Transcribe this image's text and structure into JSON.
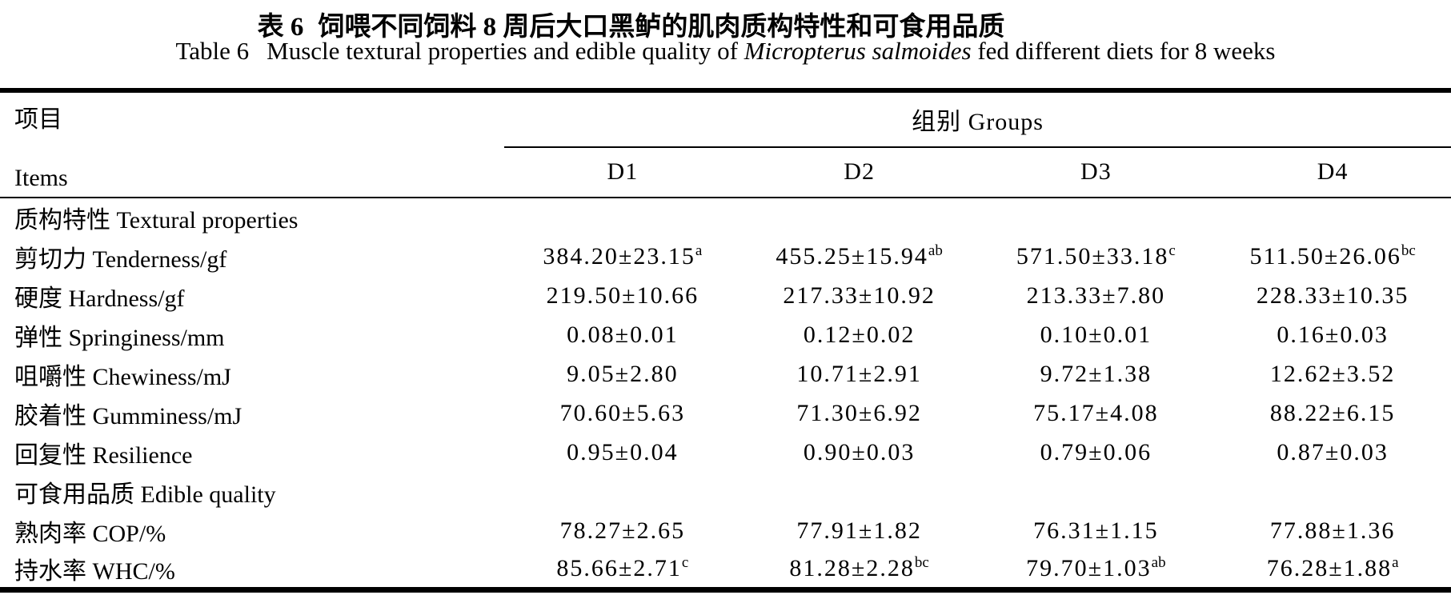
{
  "title": {
    "zh_prefix": "表 6",
    "zh_main": "饲喂不同饲料 8 周后大口黑鲈的肌肉质构特性和可食用品质",
    "en_prefix": "Table 6",
    "en_before_italic": "Muscle textural properties and edible quality of",
    "en_italic": "Micropterus salmoides",
    "en_after_italic": "fed different diets for 8 weeks"
  },
  "table": {
    "header": {
      "items_zh": "项目",
      "items_en": "Items",
      "groups_label": "组别 Groups",
      "columns": [
        "D1",
        "D2",
        "D3",
        "D4"
      ]
    },
    "rows": [
      {
        "type": "section",
        "label": "质构特性 Textural properties"
      },
      {
        "type": "data",
        "label": "剪切力 Tenderness/gf",
        "values": [
          {
            "text": "384.20±23.15",
            "sup": "a"
          },
          {
            "text": "455.25±15.94",
            "sup": "ab"
          },
          {
            "text": "571.50±33.18",
            "sup": "c"
          },
          {
            "text": "511.50±26.06",
            "sup": "bc"
          }
        ]
      },
      {
        "type": "data",
        "label": "硬度 Hardness/gf",
        "values": [
          {
            "text": "219.50±10.66",
            "sup": ""
          },
          {
            "text": "217.33±10.92",
            "sup": ""
          },
          {
            "text": "213.33±7.80",
            "sup": ""
          },
          {
            "text": "228.33±10.35",
            "sup": ""
          }
        ]
      },
      {
        "type": "data",
        "label": "弹性 Springiness/mm",
        "values": [
          {
            "text": "0.08±0.01",
            "sup": ""
          },
          {
            "text": "0.12±0.02",
            "sup": ""
          },
          {
            "text": "0.10±0.01",
            "sup": ""
          },
          {
            "text": "0.16±0.03",
            "sup": ""
          }
        ]
      },
      {
        "type": "data",
        "label": "咀嚼性 Chewiness/mJ",
        "values": [
          {
            "text": "9.05±2.80",
            "sup": ""
          },
          {
            "text": "10.71±2.91",
            "sup": ""
          },
          {
            "text": "9.72±1.38",
            "sup": ""
          },
          {
            "text": "12.62±3.52",
            "sup": ""
          }
        ]
      },
      {
        "type": "data",
        "label": "胶着性 Gumminess/mJ",
        "values": [
          {
            "text": "70.60±5.63",
            "sup": ""
          },
          {
            "text": "71.30±6.92",
            "sup": ""
          },
          {
            "text": "75.17±4.08",
            "sup": ""
          },
          {
            "text": "88.22±6.15",
            "sup": ""
          }
        ]
      },
      {
        "type": "data",
        "label": "回复性 Resilience",
        "values": [
          {
            "text": "0.95±0.04",
            "sup": ""
          },
          {
            "text": "0.90±0.03",
            "sup": ""
          },
          {
            "text": "0.79±0.06",
            "sup": ""
          },
          {
            "text": "0.87±0.03",
            "sup": ""
          }
        ]
      },
      {
        "type": "section",
        "label": "可食用品质 Edible quality"
      },
      {
        "type": "data",
        "label": "熟肉率 COP/%",
        "values": [
          {
            "text": "78.27±2.65",
            "sup": ""
          },
          {
            "text": "77.91±1.82",
            "sup": ""
          },
          {
            "text": "76.31±1.15",
            "sup": ""
          },
          {
            "text": "77.88±1.36",
            "sup": ""
          }
        ]
      },
      {
        "type": "data",
        "label": "持水率 WHC/%",
        "values": [
          {
            "text": "85.66±2.71",
            "sup": "c"
          },
          {
            "text": "81.28±2.28",
            "sup": "bc"
          },
          {
            "text": "79.70±1.03",
            "sup": "ab"
          },
          {
            "text": "76.28±1.88",
            "sup": "a"
          }
        ]
      }
    ]
  },
  "colors": {
    "text": "#000000",
    "background": "#ffffff",
    "border": "#000000"
  }
}
